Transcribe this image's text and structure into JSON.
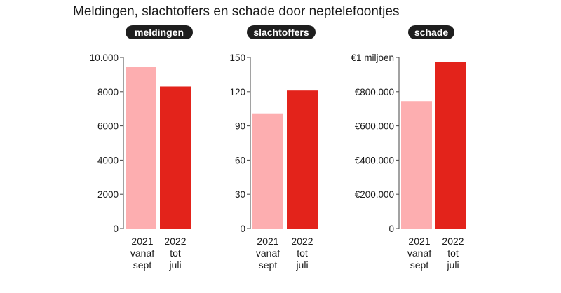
{
  "title": "Meldingen, slachtoffers en schade door neptelefoontjes",
  "colors": {
    "light_bar": "#fdaeb0",
    "dark_bar": "#e3231b",
    "pill_bg": "#1e1e1e",
    "axis": "#444444"
  },
  "chart_data": [
    {
      "type": "bar",
      "title": "meldingen",
      "categories": [
        [
          "2021",
          "vanaf",
          "sept"
        ],
        [
          "2022",
          "tot",
          "juli"
        ]
      ],
      "values": [
        9450,
        8300
      ],
      "ylim": [
        0,
        10000
      ],
      "ticks": [
        0,
        2000,
        4000,
        6000,
        8000,
        10000
      ],
      "tick_labels": [
        "0",
        "2000",
        "4000",
        "6000",
        "8000",
        "10.000"
      ],
      "grid": false
    },
    {
      "type": "bar",
      "title": "slachtoffers",
      "categories": [
        [
          "2021",
          "vanaf",
          "sept"
        ],
        [
          "2022",
          "tot",
          "juli"
        ]
      ],
      "values": [
        101,
        121
      ],
      "ylim": [
        0,
        150
      ],
      "ticks": [
        0,
        30,
        60,
        90,
        120,
        150
      ],
      "tick_labels": [
        "0",
        "30",
        "60",
        "90",
        "120",
        "150"
      ],
      "grid": false
    },
    {
      "type": "bar",
      "title": "schade",
      "categories": [
        [
          "2021",
          "vanaf",
          "sept"
        ],
        [
          "2022",
          "tot",
          "juli"
        ]
      ],
      "values": [
        745000,
        975000
      ],
      "ylim": [
        0,
        1000000
      ],
      "ticks": [
        0,
        200000,
        400000,
        600000,
        800000,
        1000000
      ],
      "tick_labels": [
        "0",
        "€200.000",
        "€400.000",
        "€600.000",
        "€800.000",
        "€1 miljoen"
      ],
      "grid": false
    }
  ]
}
